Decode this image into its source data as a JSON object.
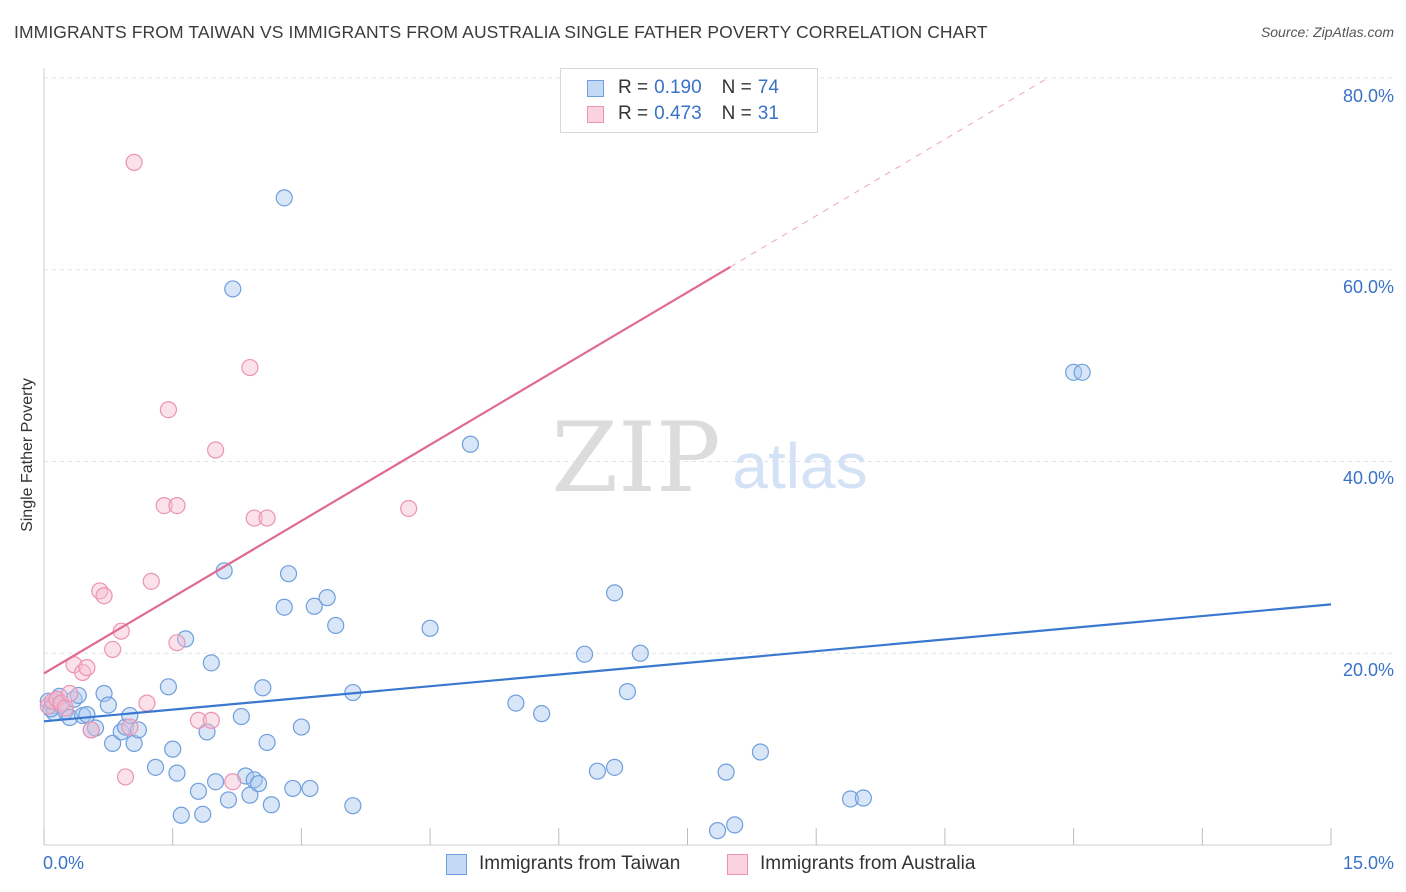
{
  "header": {
    "title": "IMMIGRANTS FROM TAIWAN VS IMMIGRANTS FROM AUSTRALIA SINGLE FATHER POVERTY CORRELATION CHART",
    "source": "Source: ZipAtlas.com"
  },
  "watermark": {
    "zip": "ZIP",
    "atlas": "atlas"
  },
  "legend": {
    "r_label": "R =",
    "n_label": "N =",
    "taiwan": {
      "r": "0.190",
      "n": "74"
    },
    "australia": {
      "r": "0.473",
      "n": "31"
    }
  },
  "colors": {
    "taiwan_fill": "#a9c8f0",
    "taiwan_stroke": "#6f9fdc",
    "taiwan_line": "#3a78d0",
    "australia_fill": "#f6bcd0",
    "australia_stroke": "#ec93b2",
    "australia_line": "#e06a94",
    "tick_text": "#3a72c8"
  },
  "chart_data": {
    "type": "scatter",
    "title": "IMMIGRANTS FROM TAIWAN VS IMMIGRANTS FROM AUSTRALIA SINGLE FATHER POVERTY CORRELATION CHART",
    "xlabel": "",
    "ylabel": "Single Father Poverty",
    "xlim": [
      0,
      15
    ],
    "ylim": [
      0,
      80
    ],
    "x_tick_labels": [
      "0.0%",
      "15.0%"
    ],
    "y_ticks": [
      20,
      40,
      60,
      80
    ],
    "y_tick_labels": [
      "20.0%",
      "40.0%",
      "60.0%",
      "80.0%"
    ],
    "grid": true,
    "legend_position": "top-center",
    "series": [
      {
        "name": "Immigrants from Taiwan",
        "r": 0.19,
        "n": 74,
        "trend": {
          "x": [
            0,
            15
          ],
          "y": [
            12.9,
            25.1
          ]
        },
        "points": [
          [
            0.05,
            15.0
          ],
          [
            0.1,
            14.5
          ],
          [
            0.12,
            13.8
          ],
          [
            0.15,
            15.2
          ],
          [
            0.2,
            14.6
          ],
          [
            0.25,
            14.0
          ],
          [
            0.3,
            13.3
          ],
          [
            0.35,
            15.2
          ],
          [
            0.4,
            15.6
          ],
          [
            0.45,
            13.5
          ],
          [
            0.5,
            13.6
          ],
          [
            0.55,
            12.0
          ],
          [
            0.6,
            12.2
          ],
          [
            0.7,
            15.8
          ],
          [
            0.75,
            14.6
          ],
          [
            0.8,
            10.6
          ],
          [
            0.9,
            11.8
          ],
          [
            0.95,
            12.3
          ],
          [
            1.0,
            13.5
          ],
          [
            1.05,
            10.6
          ],
          [
            1.1,
            12.0
          ],
          [
            1.3,
            8.1
          ],
          [
            1.45,
            16.5
          ],
          [
            1.5,
            10.0
          ],
          [
            1.55,
            7.5
          ],
          [
            1.6,
            3.1
          ],
          [
            1.65,
            21.5
          ],
          [
            1.8,
            5.6
          ],
          [
            1.85,
            3.2
          ],
          [
            1.9,
            11.8
          ],
          [
            1.95,
            19.0
          ],
          [
            2.0,
            6.6
          ],
          [
            2.1,
            28.6
          ],
          [
            2.15,
            4.7
          ],
          [
            2.2,
            58.0
          ],
          [
            2.3,
            13.4
          ],
          [
            2.35,
            7.2
          ],
          [
            2.4,
            5.2
          ],
          [
            2.45,
            6.8
          ],
          [
            2.5,
            6.4
          ],
          [
            2.55,
            16.4
          ],
          [
            2.6,
            10.7
          ],
          [
            2.65,
            4.2
          ],
          [
            2.8,
            67.5
          ],
          [
            2.8,
            24.8
          ],
          [
            2.85,
            28.3
          ],
          [
            2.9,
            5.9
          ],
          [
            3.0,
            12.3
          ],
          [
            3.1,
            5.9
          ],
          [
            3.15,
            24.9
          ],
          [
            3.3,
            25.8
          ],
          [
            3.4,
            22.9
          ],
          [
            3.6,
            15.9
          ],
          [
            3.6,
            4.1
          ],
          [
            4.5,
            22.6
          ],
          [
            4.97,
            41.8
          ],
          [
            5.5,
            14.8
          ],
          [
            5.8,
            13.7
          ],
          [
            6.3,
            19.9
          ],
          [
            6.45,
            7.7
          ],
          [
            6.65,
            26.3
          ],
          [
            6.65,
            8.1
          ],
          [
            6.95,
            20.0
          ],
          [
            6.8,
            16.0
          ],
          [
            7.85,
            1.5
          ],
          [
            7.95,
            7.6
          ],
          [
            8.05,
            2.1
          ],
          [
            8.35,
            9.7
          ],
          [
            9.4,
            4.8
          ],
          [
            9.55,
            4.9
          ],
          [
            12.0,
            49.3
          ],
          [
            12.1,
            49.3
          ],
          [
            0.08,
            14.2
          ],
          [
            0.18,
            15.5
          ]
        ]
      },
      {
        "name": "Immigrants from Australia",
        "r": 0.473,
        "n": 31,
        "trend": {
          "x": [
            0,
            8.0
          ],
          "y": [
            17.9,
            60.3
          ]
        },
        "trend_dashed": {
          "x": [
            8.0,
            11.7
          ],
          "y": [
            60.3,
            80.0
          ]
        },
        "points": [
          [
            0.05,
            14.5
          ],
          [
            0.1,
            15.0
          ],
          [
            0.15,
            15.2
          ],
          [
            0.2,
            14.8
          ],
          [
            0.25,
            14.3
          ],
          [
            0.3,
            15.8
          ],
          [
            0.35,
            18.8
          ],
          [
            0.45,
            18.0
          ],
          [
            0.5,
            18.5
          ],
          [
            0.55,
            12.0
          ],
          [
            0.65,
            26.5
          ],
          [
            0.7,
            26.0
          ],
          [
            0.8,
            20.4
          ],
          [
            0.9,
            22.3
          ],
          [
            0.95,
            7.1
          ],
          [
            1.0,
            12.3
          ],
          [
            1.05,
            71.2
          ],
          [
            1.2,
            14.8
          ],
          [
            1.25,
            27.5
          ],
          [
            1.4,
            35.4
          ],
          [
            1.45,
            45.4
          ],
          [
            1.55,
            21.1
          ],
          [
            1.55,
            35.4
          ],
          [
            1.8,
            13.0
          ],
          [
            1.95,
            13.0
          ],
          [
            2.0,
            41.2
          ],
          [
            2.2,
            6.6
          ],
          [
            2.4,
            49.8
          ],
          [
            2.45,
            34.1
          ],
          [
            2.6,
            34.1
          ],
          [
            4.25,
            35.1
          ]
        ]
      }
    ]
  },
  "bottom_legend": {
    "taiwan_label": "Immigrants from Taiwan",
    "australia_label": "Immigrants from Australia"
  }
}
